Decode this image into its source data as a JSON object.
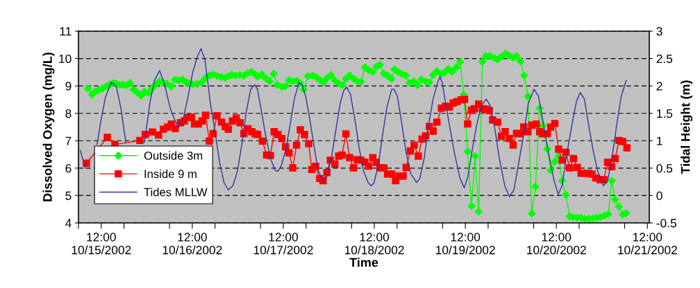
{
  "chart_data": {
    "type": "line",
    "xlabel": "Time",
    "ylabel": "Dissolved Oxygen (mg/L)",
    "y2label": "Tidal Height (m)",
    "xlim": [
      "2002-10-15T06:00",
      "2002-10-21T12:30"
    ],
    "xticks": [
      {
        "value": "2002-10-15T06:00",
        "label": null
      },
      {
        "value": "2002-10-15T12:00",
        "label": "12:00\n10/15/2002"
      },
      {
        "value": "2002-10-15T18:00",
        "label": null
      },
      {
        "value": "2002-10-16T06:00",
        "label": null
      },
      {
        "value": "2002-10-16T12:00",
        "label": "12:00\n10/16/2002"
      },
      {
        "value": "2002-10-16T18:00",
        "label": null
      },
      {
        "value": "2002-10-17T06:00",
        "label": null
      },
      {
        "value": "2002-10-17T12:00",
        "label": "12:00\n10/17/2002"
      },
      {
        "value": "2002-10-17T18:00",
        "label": null
      },
      {
        "value": "2002-10-18T06:00",
        "label": null
      },
      {
        "value": "2002-10-18T12:00",
        "label": "12:00\n10/18/2002"
      },
      {
        "value": "2002-10-18T18:00",
        "label": null
      },
      {
        "value": "2002-10-19T06:00",
        "label": null
      },
      {
        "value": "2002-10-19T12:00",
        "label": "12:00\n10/19/2002"
      },
      {
        "value": "2002-10-19T18:00",
        "label": null
      },
      {
        "value": "2002-10-20T06:00",
        "label": null
      },
      {
        "value": "2002-10-20T12:00",
        "label": "12:00\n10/20/2002"
      },
      {
        "value": "2002-10-20T18:00",
        "label": null
      },
      {
        "value": "2002-10-21T06:00",
        "label": null
      },
      {
        "value": "2002-10-21T12:00",
        "label": "12:00\n10/21/2002"
      }
    ],
    "ylim": [
      4,
      11
    ],
    "yticks": [
      4,
      5,
      6,
      7,
      8,
      9,
      10,
      11
    ],
    "y2lim": [
      -0.5,
      3
    ],
    "y2ticks": [
      -0.5,
      0,
      0.5,
      1,
      1.5,
      2,
      2.5,
      3
    ],
    "grid": "y",
    "legend": "bottom left",
    "series": [
      {
        "name": "Outside 3m",
        "color": "#00ff00",
        "marker": "diamond",
        "x": [
          "2002-10-15T08:30",
          "2002-10-15T09:36",
          "2002-10-15T10:24",
          "2002-10-15T11:18",
          "2002-10-15T12:24",
          "2002-10-15T13:24",
          "2002-10-15T14:18",
          "2002-10-15T15:12",
          "2002-10-15T16:00",
          "2002-10-15T16:54",
          "2002-10-15T17:48",
          "2002-10-15T18:42",
          "2002-10-15T19:36",
          "2002-10-15T20:30",
          "2002-10-15T21:30",
          "2002-10-15T22:30",
          "2002-10-15T23:24",
          "2002-10-16T00:24",
          "2002-10-16T01:24",
          "2002-10-16T02:24",
          "2002-10-16T03:24",
          "2002-10-16T04:18",
          "2002-10-16T05:18",
          "2002-10-16T06:30",
          "2002-10-16T07:24",
          "2002-10-16T08:24",
          "2002-10-16T09:24",
          "2002-10-16T10:18",
          "2002-10-16T11:12",
          "2002-10-16T12:06",
          "2002-10-16T13:18",
          "2002-10-16T14:30",
          "2002-10-16T15:30",
          "2002-10-16T16:30",
          "2002-10-16T17:30",
          "2002-10-16T18:36",
          "2002-10-16T19:42",
          "2002-10-16T20:42",
          "2002-10-16T21:30",
          "2002-10-16T22:24",
          "2002-10-16T23:24",
          "2002-10-17T00:30",
          "2002-10-17T01:36",
          "2002-10-17T02:36",
          "2002-10-17T03:36",
          "2002-10-17T04:36",
          "2002-10-17T05:12",
          "2002-10-17T06:18",
          "2002-10-17T07:24",
          "2002-10-17T08:24",
          "2002-10-17T09:30",
          "2002-10-17T10:24",
          "2002-10-17T11:36",
          "2002-10-17T12:36",
          "2002-10-17T13:30",
          "2002-10-17T14:30",
          "2002-10-17T15:30",
          "2002-10-17T16:24",
          "2002-10-17T17:24",
          "2002-10-17T18:30",
          "2002-10-17T19:42",
          "2002-10-17T20:42",
          "2002-10-17T21:36",
          "2002-10-17T22:36",
          "2002-10-17T23:36",
          "2002-10-18T00:36",
          "2002-10-18T01:36",
          "2002-10-18T02:36",
          "2002-10-18T03:36",
          "2002-10-18T04:30",
          "2002-10-18T05:30",
          "2002-10-18T06:36",
          "2002-10-18T07:30",
          "2002-10-18T08:30",
          "2002-10-18T09:30",
          "2002-10-18T10:36",
          "2002-10-18T11:36",
          "2002-10-18T12:36",
          "2002-10-18T13:30",
          "2002-10-18T14:30",
          "2002-10-18T15:24",
          "2002-10-18T16:30",
          "2002-10-18T17:18",
          "2002-10-18T18:18",
          "2002-10-18T19:18",
          "2002-10-18T20:18",
          "2002-10-18T21:18",
          "2002-10-18T22:24",
          "2002-10-18T23:24",
          "2002-10-19T00:24",
          "2002-10-19T01:30",
          "2002-10-19T02:30",
          "2002-10-19T03:30",
          "2002-10-19T04:30",
          "2002-10-19T05:36",
          "2002-10-19T06:30",
          "2002-10-19T07:30",
          "2002-10-19T08:30",
          "2002-10-19T09:36",
          "2002-10-19T10:36",
          "2002-10-19T11:36",
          "2002-10-19T12:36",
          "2002-10-19T13:36",
          "2002-10-19T14:36",
          "2002-10-19T15:30",
          "2002-10-19T16:30",
          "2002-10-19T17:24",
          "2002-10-19T18:30",
          "2002-10-19T19:30",
          "2002-10-19T20:30",
          "2002-10-19T21:30",
          "2002-10-19T22:36",
          "2002-10-19T23:36",
          "2002-10-20T00:36",
          "2002-10-20T01:30",
          "2002-10-20T02:30",
          "2002-10-20T03:30",
          "2002-10-20T04:30",
          "2002-10-20T05:30",
          "2002-10-20T06:30",
          "2002-10-20T07:36",
          "2002-10-20T08:24",
          "2002-10-20T09:36",
          "2002-10-20T10:30",
          "2002-10-20T11:36",
          "2002-10-20T12:36",
          "2002-10-20T13:30",
          "2002-10-20T14:30",
          "2002-10-20T15:30",
          "2002-10-20T16:24",
          "2002-10-20T17:30",
          "2002-10-20T18:30",
          "2002-10-20T19:30",
          "2002-10-20T20:30",
          "2002-10-20T21:36",
          "2002-10-20T22:36",
          "2002-10-20T23:36",
          "2002-10-21T00:42",
          "2002-10-21T01:42",
          "2002-10-21T02:36",
          "2002-10-21T03:30",
          "2002-10-21T04:30",
          "2002-10-21T05:30",
          "2002-10-21T06:24"
        ],
        "values": [
          8.91,
          8.68,
          8.79,
          8.85,
          8.91,
          8.98,
          9.06,
          9.1,
          9.07,
          9.04,
          9.04,
          9.03,
          9.1,
          8.87,
          8.76,
          8.64,
          8.79,
          8.74,
          8.91,
          9.06,
          9.17,
          9.12,
          9.08,
          8.98,
          9.23,
          9.2,
          9.23,
          9.15,
          9.09,
          9.06,
          9.07,
          9.13,
          9.3,
          9.38,
          9.42,
          9.36,
          9.32,
          9.3,
          9.36,
          9.4,
          9.38,
          9.4,
          9.37,
          9.47,
          9.51,
          9.42,
          9.34,
          9.43,
          9.28,
          9.17,
          9.44,
          9.04,
          8.97,
          8.99,
          9.21,
          9.17,
          9.19,
          9.11,
          8.87,
          9.36,
          9.38,
          9.32,
          9.23,
          9.13,
          9.29,
          9.39,
          9.2,
          9.09,
          9.03,
          9.26,
          9.38,
          9.26,
          9.17,
          9.15,
          9.68,
          9.57,
          9.51,
          9.71,
          9.77,
          9.45,
          9.38,
          9.26,
          9.6,
          9.51,
          9.44,
          9.38,
          9.11,
          9.17,
          9.03,
          9.23,
          9.17,
          9.13,
          9.4,
          9.54,
          9.44,
          9.49,
          9.62,
          9.51,
          9.68,
          9.88,
          8.68,
          6.61,
          4.62,
          6.44,
          4.41,
          9.88,
          10.09,
          10.09,
          10.03,
          9.97,
          10.07,
          10.18,
          10.11,
          10.03,
          10.09,
          9.9,
          9.38,
          8.62,
          4.34,
          5.32,
          8.19,
          7.55,
          6.7,
          5.92,
          6.24,
          6.44,
          5.54,
          5.03,
          4.24,
          4.21,
          4.19,
          4.19,
          4.15,
          4.15,
          4.17,
          4.19,
          4.21,
          4.27,
          4.32,
          5.54,
          4.85,
          4.6,
          4.3,
          4.36
        ]
      },
      {
        "name": "Inside 9 m",
        "color": "#ff0000",
        "marker": "square",
        "x": [
          "2002-10-15T08:06",
          "2002-10-15T13:36",
          "2002-10-15T15:36",
          "2002-10-15T22:12",
          "2002-10-15T23:36",
          "2002-10-16T01:30",
          "2002-10-16T03:06",
          "2002-10-16T04:24",
          "2002-10-16T05:30",
          "2002-10-16T06:30",
          "2002-10-16T07:30",
          "2002-10-16T08:54",
          "2002-10-16T09:54",
          "2002-10-16T10:54",
          "2002-10-16T11:48",
          "2002-10-16T12:36",
          "2002-10-16T13:36",
          "2002-10-16T14:36",
          "2002-10-16T15:30",
          "2002-10-16T16:30",
          "2002-10-16T17:30",
          "2002-10-16T18:30",
          "2002-10-16T19:42",
          "2002-10-16T20:42",
          "2002-10-16T21:30",
          "2002-10-16T22:36",
          "2002-10-16T23:36",
          "2002-10-17T00:36",
          "2002-10-17T01:36",
          "2002-10-17T02:42",
          "2002-10-17T03:42",
          "2002-10-17T04:36",
          "2002-10-17T05:12",
          "2002-10-17T06:30",
          "2002-10-17T07:36",
          "2002-10-17T08:36",
          "2002-10-17T09:36",
          "2002-10-17T10:36",
          "2002-10-17T11:36",
          "2002-10-17T12:36",
          "2002-10-17T13:30",
          "2002-10-17T14:30",
          "2002-10-17T15:30",
          "2002-10-17T16:30",
          "2002-10-17T17:36",
          "2002-10-17T18:42",
          "2002-10-17T19:30",
          "2002-10-17T20:30",
          "2002-10-17T21:36",
          "2002-10-17T22:30",
          "2002-10-17T23:30",
          "2002-10-18T00:24",
          "2002-10-18T01:36",
          "2002-10-18T02:36",
          "2002-10-18T03:30",
          "2002-10-18T04:30",
          "2002-10-18T05:30",
          "2002-10-18T06:30",
          "2002-10-18T07:30",
          "2002-10-18T08:30",
          "2002-10-18T09:30",
          "2002-10-18T10:30",
          "2002-10-18T11:36",
          "2002-10-18T12:30",
          "2002-10-18T13:30",
          "2002-10-18T14:30",
          "2002-10-18T15:30",
          "2002-10-18T16:36",
          "2002-10-18T17:36",
          "2002-10-18T18:36",
          "2002-10-18T19:36",
          "2002-10-18T20:24",
          "2002-10-18T21:30",
          "2002-10-18T22:30",
          "2002-10-18T23:36",
          "2002-10-19T00:36",
          "2002-10-19T01:30",
          "2002-10-19T02:30",
          "2002-10-19T03:30",
          "2002-10-19T04:30",
          "2002-10-19T05:42",
          "2002-10-19T06:48",
          "2002-10-19T07:48",
          "2002-10-19T08:48",
          "2002-10-19T09:48",
          "2002-10-19T10:54",
          "2002-10-19T11:48",
          "2002-10-19T12:36",
          "2002-10-19T13:36",
          "2002-10-19T14:24",
          "2002-10-19T15:30",
          "2002-10-19T16:30",
          "2002-10-19T17:24",
          "2002-10-19T18:18",
          "2002-10-19T19:12",
          "2002-10-19T20:30",
          "2002-10-19T21:30",
          "2002-10-19T22:30",
          "2002-10-19T23:36",
          "2002-10-20T00:36",
          "2002-10-20T01:30",
          "2002-10-20T02:24",
          "2002-10-20T03:24",
          "2002-10-20T04:30",
          "2002-10-20T05:30",
          "2002-10-20T06:42",
          "2002-10-20T07:36",
          "2002-10-20T08:24",
          "2002-10-20T09:36",
          "2002-10-20T10:30",
          "2002-10-20T11:36",
          "2002-10-20T12:36",
          "2002-10-20T13:30",
          "2002-10-20T14:30",
          "2002-10-20T15:30",
          "2002-10-20T16:30",
          "2002-10-20T17:30",
          "2002-10-20T18:30",
          "2002-10-20T19:30",
          "2002-10-20T20:24",
          "2002-10-20T21:24",
          "2002-10-20T22:24",
          "2002-10-20T23:30",
          "2002-10-21T00:30",
          "2002-10-21T01:30",
          "2002-10-21T02:36",
          "2002-10-21T03:30",
          "2002-10-21T04:30",
          "2002-10-21T05:30",
          "2002-10-21T06:36"
        ],
        "values": [
          6.18,
          7.12,
          6.86,
          7.01,
          7.23,
          7.32,
          7.21,
          7.42,
          7.5,
          7.61,
          7.44,
          7.66,
          7.72,
          7.85,
          7.86,
          7.61,
          7.61,
          7.72,
          7.93,
          6.99,
          7.26,
          7.91,
          7.68,
          7.52,
          7.42,
          7.72,
          7.83,
          7.66,
          7.26,
          7.44,
          7.33,
          7.25,
          7.23,
          6.99,
          6.48,
          6.46,
          7.33,
          7.23,
          7.08,
          6.78,
          6.56,
          6.01,
          6.84,
          7.4,
          7.23,
          6.89,
          5.95,
          6.07,
          5.62,
          5.54,
          5.84,
          6.29,
          6.15,
          6.44,
          6.48,
          7.25,
          6.38,
          6.01,
          6.31,
          6.29,
          6.22,
          6.07,
          6.38,
          6.21,
          6.01,
          6.01,
          5.79,
          5.78,
          5.54,
          5.71,
          5.71,
          6.03,
          6.63,
          6.84,
          6.44,
          7.06,
          7.18,
          7.52,
          7.35,
          7.68,
          8.19,
          8.26,
          8.23,
          8.38,
          8.43,
          8.49,
          8.51,
          7.61,
          8.12,
          8.17,
          8.34,
          8.17,
          8.15,
          8.1,
          7.76,
          7.68,
          7.16,
          7.33,
          7.08,
          6.84,
          7.27,
          7.25,
          7.5,
          7.33,
          7.57,
          7.61,
          7.33,
          7.25,
          7.25,
          7.5,
          7.63,
          6.69,
          6.29,
          6.58,
          6.01,
          6.35,
          6.03,
          5.81,
          5.81,
          5.81,
          5.78,
          5.64,
          5.58,
          5.58,
          6.21,
          6.05,
          6.35,
          7.01,
          6.97,
          6.74
        ]
      },
      {
        "name": "Tides MLLW",
        "color": "#333399",
        "marker": "none",
        "axis": "y2",
        "x": [
          "2002-10-15T06:30",
          "2002-10-15T07:48",
          "2002-10-15T09:00",
          "2002-10-15T10:54",
          "2002-10-15T11:54",
          "2002-10-15T13:06",
          "2002-10-15T14:42",
          "2002-10-15T16:00",
          "2002-10-15T17:12",
          "2002-10-15T18:30",
          "2002-10-15T20:30",
          "2002-10-15T23:24",
          "2002-10-16T00:54",
          "2002-10-16T02:06",
          "2002-10-16T03:24",
          "2002-10-16T04:42",
          "2002-10-16T06:12",
          "2002-10-16T07:24",
          "2002-10-16T08:24",
          "2002-10-16T09:42",
          "2002-10-16T10:54",
          "2002-10-16T12:06",
          "2002-10-16T13:18",
          "2002-10-16T14:18",
          "2002-10-16T15:18",
          "2002-10-16T16:12",
          "2002-10-16T16:42",
          "2002-10-16T18:00",
          "2002-10-16T19:12",
          "2002-10-16T20:24",
          "2002-10-16T21:30",
          "2002-10-16T22:42",
          "2002-10-16T23:54",
          "2002-10-17T01:06",
          "2002-10-17T02:18",
          "2002-10-17T03:24",
          "2002-10-17T04:30",
          "2002-10-17T05:12",
          "2002-10-17T06:24",
          "2002-10-17T07:36",
          "2002-10-17T08:42",
          "2002-10-17T09:54",
          "2002-10-17T10:30",
          "2002-10-17T11:24",
          "2002-10-17T12:36",
          "2002-10-17T13:48",
          "2002-10-17T14:54",
          "2002-10-17T16:06",
          "2002-10-17T17:00",
          "2002-10-17T17:54",
          "2002-10-17T18:48",
          "2002-10-17T20:00",
          "2002-10-17T21:06",
          "2002-10-17T22:24",
          "2002-10-17T23:30",
          "2002-10-18T00:42",
          "2002-10-18T01:54",
          "2002-10-18T03:00",
          "2002-10-18T03:54",
          "2002-10-18T04:42",
          "2002-10-18T05:42",
          "2002-10-18T06:54",
          "2002-10-18T08:00",
          "2002-10-18T09:12",
          "2002-10-18T10:24",
          "2002-10-18T11:12",
          "2002-10-18T11:54",
          "2002-10-18T13:06",
          "2002-10-18T14:12",
          "2002-10-18T15:24",
          "2002-10-18T16:36",
          "2002-10-18T17:12",
          "2002-10-18T18:06",
          "2002-10-18T19:18",
          "2002-10-18T20:24",
          "2002-10-18T21:36",
          "2002-10-18T23:06",
          "2002-10-19T00:00",
          "2002-10-19T01:12",
          "2002-10-19T02:18",
          "2002-10-19T03:30",
          "2002-10-19T04:42",
          "2002-10-19T05:18",
          "2002-10-19T05:54",
          "2002-10-19T06:48",
          "2002-10-19T08:00",
          "2002-10-19T09:06",
          "2002-10-19T10:36",
          "2002-10-19T11:42",
          "2002-10-19T12:42",
          "2002-10-19T13:54",
          "2002-10-19T15:00",
          "2002-10-19T16:12",
          "2002-10-19T17:30",
          "2002-10-19T18:36",
          "2002-10-19T19:48",
          "2002-10-19T20:54",
          "2002-10-19T22:24",
          "2002-10-19T23:36",
          "2002-10-20T00:48",
          "2002-10-20T01:54",
          "2002-10-20T03:24",
          "2002-10-20T04:36",
          "2002-10-20T06:06",
          "2002-10-20T07:18",
          "2002-10-20T08:24",
          "2002-10-20T09:54",
          "2002-10-20T11:24",
          "2002-10-20T12:30",
          "2002-10-20T13:30",
          "2002-10-20T14:36",
          "2002-10-20T16:06",
          "2002-10-20T17:18",
          "2002-10-20T18:18",
          "2002-10-20T19:24",
          "2002-10-20T20:30",
          "2002-10-20T21:42",
          "2002-10-20T22:54",
          "2002-10-21T00:24",
          "2002-10-21T01:30",
          "2002-10-21T02:42",
          "2002-10-21T03:54",
          "2002-10-21T05:06",
          "2002-10-21T06:24"
        ],
        "values": [
          0.82,
          0.5,
          null,
          0.93,
          1.36,
          1.79,
          2.07,
          1.98,
          1.59,
          0.97,
          null,
          0.97,
          1.72,
          2.11,
          2.28,
          2.03,
          1.59,
          1.38,
          1.24,
          1.42,
          1.81,
          2.24,
          2.53,
          2.68,
          2.49,
          2.02,
          1.72,
          1.17,
          0.61,
          0.23,
          0.1,
          0.18,
          0.44,
          0.95,
          1.55,
          1.94,
          2.02,
          1.94,
          1.47,
          1.0,
          0.66,
          0.46,
          0.44,
          0.53,
          0.82,
          1.29,
          1.76,
          2.06,
          2.02,
          1.81,
          1.47,
          0.95,
          0.48,
          0.27,
          0.35,
          0.7,
          1.21,
          1.68,
          1.91,
          1.98,
          1.85,
          1.38,
          0.87,
          0.44,
          0.23,
          0.18,
          0.23,
          0.57,
          1.12,
          1.64,
          1.94,
          1.94,
          1.81,
          1.29,
          0.78,
          0.4,
          0.24,
          0.31,
          0.7,
          1.29,
          1.76,
          2.06,
          2.17,
          2.06,
          1.68,
          1.21,
          0.78,
          0.31,
          0.14,
          0.35,
          0.87,
          1.29,
          1.64,
          1.76,
          1.64,
          1.21,
          0.7,
          0.18,
          -0.02,
          0.1,
          0.53,
          1.12,
          1.68,
          1.94,
          1.81,
          1.38,
          0.78,
          0.27,
          0.02,
          0.18,
          0.7,
          1.29,
          1.72,
          1.88,
          1.76,
          1.29,
          0.82,
          0.44,
          0.18,
          0.27,
          0.7,
          1.29,
          1.81,
          2.1
        ]
      }
    ]
  }
}
